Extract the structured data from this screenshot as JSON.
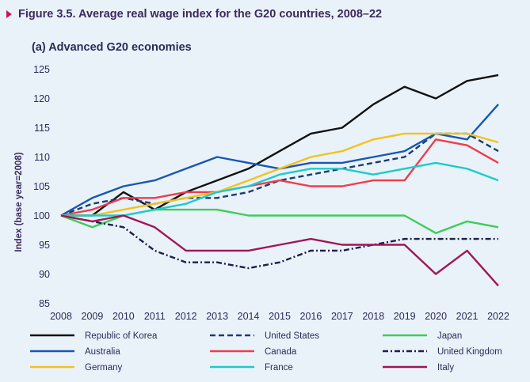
{
  "figure": {
    "title": "Figure 3.5.  Average real wage index for the G20 countries, 2008–22",
    "subtitle": "(a) Advanced G20 economies"
  },
  "chart_data": {
    "type": "line",
    "title": "Average real wage index for the G20 countries, 2008–22",
    "subtitle": "(a) Advanced G20 economies",
    "ylabel": "Index (base year=2008)",
    "xlabel": "",
    "x": [
      2008,
      2009,
      2010,
      2011,
      2012,
      2013,
      2014,
      2015,
      2016,
      2017,
      2018,
      2019,
      2020,
      2021,
      2022
    ],
    "yticks": [
      85,
      90,
      95,
      100,
      105,
      110,
      115,
      120,
      125
    ],
    "ylim": [
      85,
      125
    ],
    "grid": false,
    "legend_position": "bottom",
    "series": [
      {
        "name": "Republic of Korea",
        "color": "#111111",
        "dash": "solid",
        "values": [
          100,
          100,
          104,
          101,
          104,
          106,
          108,
          111,
          114,
          115,
          119,
          122,
          120,
          123,
          124
        ]
      },
      {
        "name": "United States",
        "color": "#1c3b73",
        "dash": "dashed",
        "values": [
          100,
          102,
          103,
          102,
          103,
          103,
          104,
          106,
          107,
          108,
          109,
          110,
          114,
          114,
          111
        ]
      },
      {
        "name": "Japan",
        "color": "#3ccd5a",
        "dash": "solid",
        "values": [
          100,
          98,
          100,
          101,
          101,
          101,
          100,
          100,
          100,
          100,
          100,
          100,
          97,
          99,
          98
        ]
      },
      {
        "name": "Australia",
        "color": "#1857b4",
        "dash": "solid",
        "values": [
          100,
          103,
          105,
          106,
          108,
          110,
          109,
          108,
          109,
          109,
          110,
          111,
          114,
          113,
          119
        ]
      },
      {
        "name": "Canada",
        "color": "#ee3d4d",
        "dash": "solid",
        "values": [
          100,
          101,
          103,
          103,
          104,
          104,
          105,
          106,
          105,
          105,
          106,
          106,
          113,
          112,
          109
        ]
      },
      {
        "name": "United Kingdom",
        "color": "#1e1e4e",
        "dash": "dashdot",
        "values": [
          100,
          99,
          98,
          94,
          92,
          92,
          91,
          92,
          94,
          94,
          95,
          96,
          96,
          96,
          96
        ]
      },
      {
        "name": "Germany",
        "color": "#f2c31c",
        "dash": "solid",
        "values": [
          100,
          100,
          101,
          102,
          103,
          104,
          106,
          108,
          110,
          111,
          113,
          114,
          114,
          114,
          112.5
        ]
      },
      {
        "name": "France",
        "color": "#1ecbcb",
        "dash": "solid",
        "values": [
          100,
          100,
          100,
          101,
          102,
          104,
          105,
          107,
          108,
          108,
          107,
          108,
          109,
          108,
          106
        ]
      },
      {
        "name": "Italy",
        "color": "#a01656",
        "dash": "solid",
        "values": [
          100,
          99,
          100,
          98,
          94,
          94,
          94,
          95,
          96,
          95,
          95,
          95,
          90,
          94,
          88
        ]
      }
    ]
  }
}
